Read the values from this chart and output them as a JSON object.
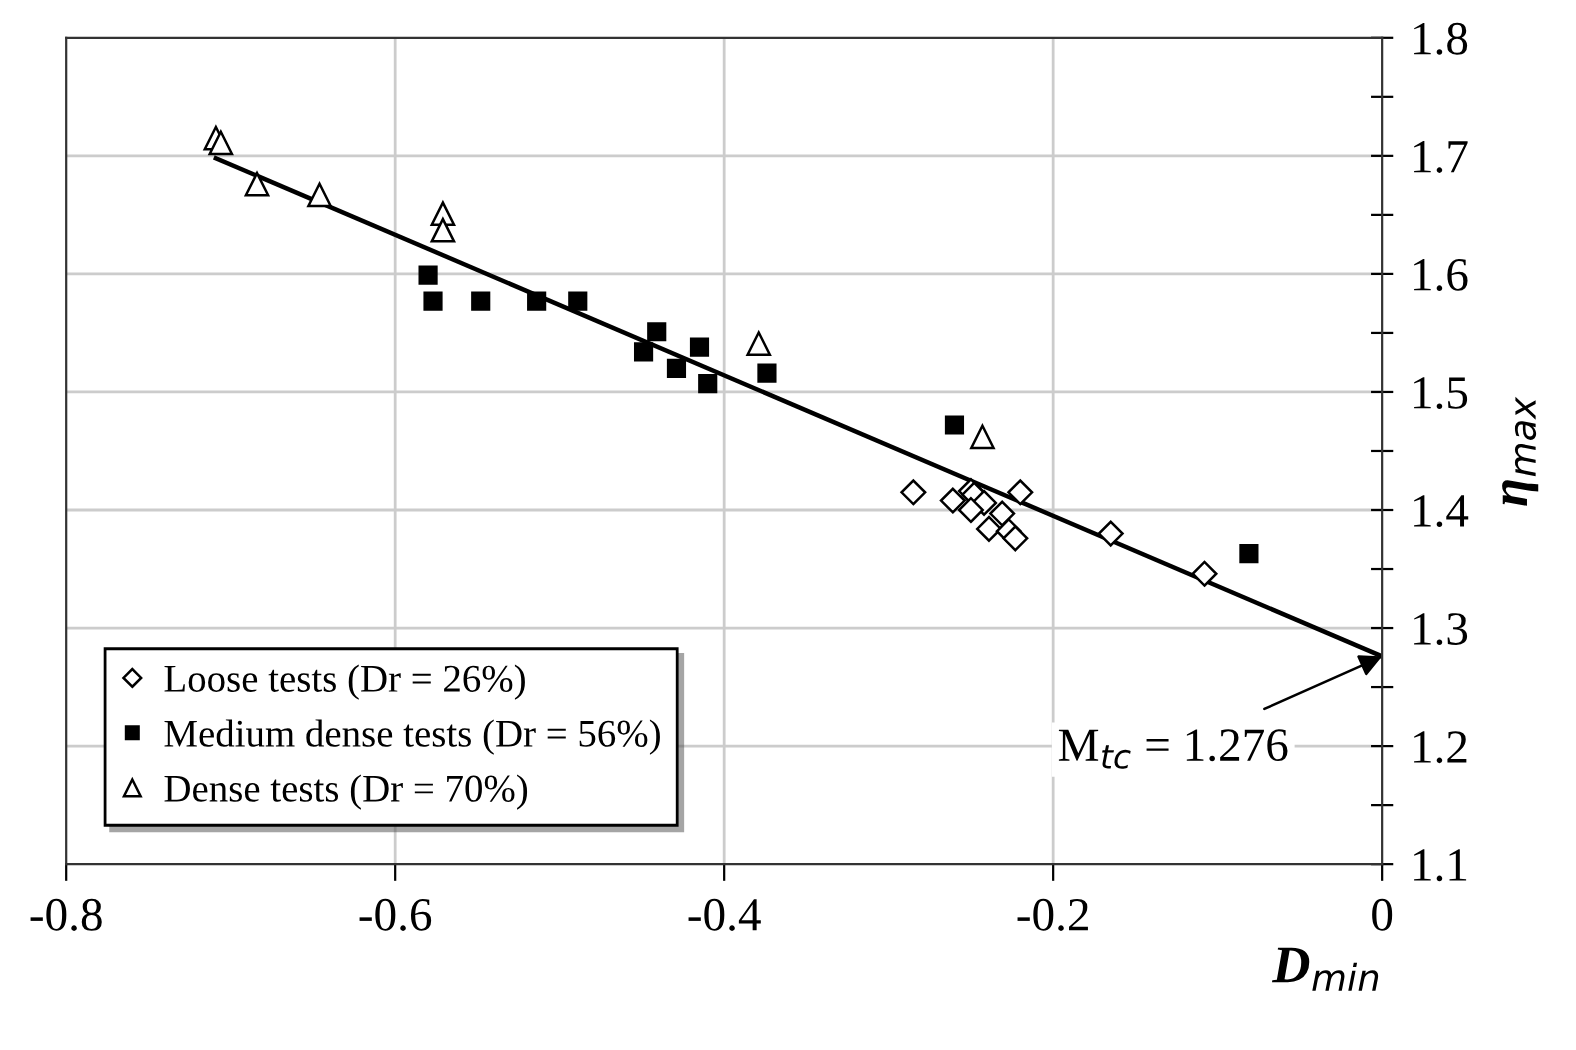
{
  "chart_data": {
    "type": "scatter",
    "xlabel": "D$_{min}$",
    "ylabel": "η$_{max}$",
    "xlim": [
      -0.8,
      0
    ],
    "xticks": [
      -0.8,
      -0.6,
      -0.4,
      -0.2,
      0
    ],
    "ylim": [
      1.1,
      1.8
    ],
    "yticks": [
      1.1,
      {
        "value": 1.15,
        "label": null
      },
      1.2,
      {
        "value": 1.25,
        "label": null
      },
      1.3,
      {
        "value": 1.35,
        "label": null
      },
      1.4,
      {
        "value": 1.45,
        "label": null
      },
      1.5,
      {
        "value": 1.55,
        "label": null
      },
      1.6,
      {
        "value": 1.65,
        "label": null
      },
      1.7,
      {
        "value": 1.75,
        "label": null
      },
      1.8
    ],
    "grid": true,
    "legend": "bottom left",
    "series": [
      {
        "name": "Loose tests (Dr = 26%)",
        "marker": "diamond",
        "color": "#000000",
        "x": [
          -0.285,
          -0.261,
          -0.25,
          -0.248,
          -0.242,
          -0.25,
          -0.231,
          -0.239,
          -0.227,
          -0.223,
          -0.22,
          -0.165,
          -0.108
        ],
        "values": [
          1.415,
          1.408,
          1.416,
          1.413,
          1.406,
          1.4,
          1.397,
          1.384,
          1.382,
          1.376,
          1.415,
          1.38,
          1.346
        ]
      },
      {
        "name": "Medium dense tests (Dr = 56%)",
        "marker": "square",
        "color": "#000000",
        "x": [
          -0.58,
          -0.577,
          -0.548,
          -0.514,
          -0.489,
          -0.441,
          -0.449,
          -0.415,
          -0.429,
          -0.41,
          -0.374,
          -0.26,
          -0.081
        ],
        "values": [
          1.599,
          1.577,
          1.577,
          1.577,
          1.577,
          1.551,
          1.534,
          1.538,
          1.52,
          1.507,
          1.516,
          1.472,
          1.363
        ]
      },
      {
        "name": "Dense tests (Dr = 70%)",
        "marker": "triangle",
        "color": "#000000",
        "x": [
          -0.709,
          -0.706,
          -0.684,
          -0.646,
          -0.571,
          -0.571,
          -0.379,
          -0.243
        ],
        "values": [
          1.715,
          1.711,
          1.676,
          1.667,
          1.651,
          1.637,
          1.541,
          1.462
        ]
      },
      {
        "type": "line",
        "marker": "none",
        "color": "#000000",
        "x": [
          -0.709,
          0
        ],
        "values": [
          1.698,
          1.276
        ]
      }
    ],
    "annotations": [
      {
        "text": "M$_{tc}$ = 1.276",
        "x": 0,
        "y": 1.276
      }
    ]
  }
}
